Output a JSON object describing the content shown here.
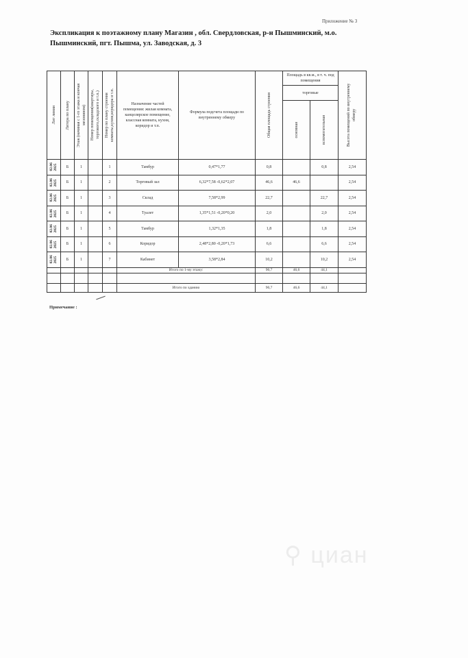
{
  "appendix": "Приложение № 3",
  "title": "Экспликация к поэтажному плану Магазин , обл. Свердловская, р-н Пышминский, м.о. Пышминский, пгт. Пышма, ул. Заводская, д. 3",
  "headers": {
    "line": "Лит линии",
    "litera": "Литера по плану",
    "floor": "Этаж (начиная с 1-го этажа и кончая мезонином)",
    "room_no": "Номер помещения(квартиры, торгового,складского и т.п.)",
    "plan_no": "Номер по плану строения комнаты,кухни,коридора и т.п.",
    "purpose": "Назначение частей помещения: жилая комната, канцелярское помещение, классная комната, кухня, коридор и т.п.",
    "formula": "Формула подсчета площади по внутреннему обмеру",
    "total_area": "Общая площадь строения",
    "area_group": "Площадь в кв.м., в т. ч. под помещения",
    "trade": "торговые",
    "main": "основная",
    "aux": "вспомогательная",
    "height": "Высота помещений по внутреннему обмеру"
  },
  "rows": [
    {
      "date": "02.06 2025",
      "litera": "Б",
      "floor": "1",
      "plan_no": "1",
      "name": "Тамбур",
      "formula": "0,47*1,77",
      "total": "0,8",
      "main": "",
      "aux": "0,8",
      "height": "2,54"
    },
    {
      "date": "02.06 2025",
      "litera": "Б",
      "floor": "1",
      "plan_no": "2",
      "name": "Торговый зал",
      "formula": "6,32*7,58 -0,62*2,07",
      "total": "46,6",
      "main": "46,6",
      "aux": "",
      "height": "2,54"
    },
    {
      "date": "02.06 2025",
      "litera": "Б",
      "floor": "1",
      "plan_no": "3",
      "name": "Склад",
      "formula": "7,58*2,99",
      "total": "22,7",
      "main": "",
      "aux": "22,7",
      "height": "2,54"
    },
    {
      "date": "02.06 2025",
      "litera": "Б",
      "floor": "1",
      "plan_no": "4",
      "name": "Туалет",
      "formula": "1,35*1,51 -0,20*0,20",
      "total": "2,0",
      "main": "",
      "aux": "2,0",
      "height": "2,54"
    },
    {
      "date": "02.06 2025",
      "litera": "Б",
      "floor": "1",
      "plan_no": "5",
      "name": "Тамбур",
      "formula": "1,32*1,35",
      "total": "1,8",
      "main": "",
      "aux": "1,8",
      "height": "2,54"
    },
    {
      "date": "02.06 2025",
      "litera": "Б",
      "floor": "1",
      "plan_no": "6",
      "name": "Коридор",
      "formula": "2,48*2,80 -0,20*1,73",
      "total": "6,6",
      "main": "",
      "aux": "6,6",
      "height": "2,54"
    },
    {
      "date": "02.06 2025",
      "litera": "Б",
      "floor": "1",
      "plan_no": "7",
      "name": "Кабинет",
      "formula": "3,58*2,84",
      "total": "10,2",
      "main": "",
      "aux": "10,2",
      "height": "2,54"
    }
  ],
  "floor_total": {
    "label": "Итого по 1-му этажу:",
    "total": "90,7",
    "main": "46,6",
    "aux": "44,1"
  },
  "building_total": {
    "label": "Итого по зданию",
    "total": "90,7",
    "main": "46,6",
    "aux": "44,1"
  },
  "note": "Примечание :",
  "watermark": "циан"
}
